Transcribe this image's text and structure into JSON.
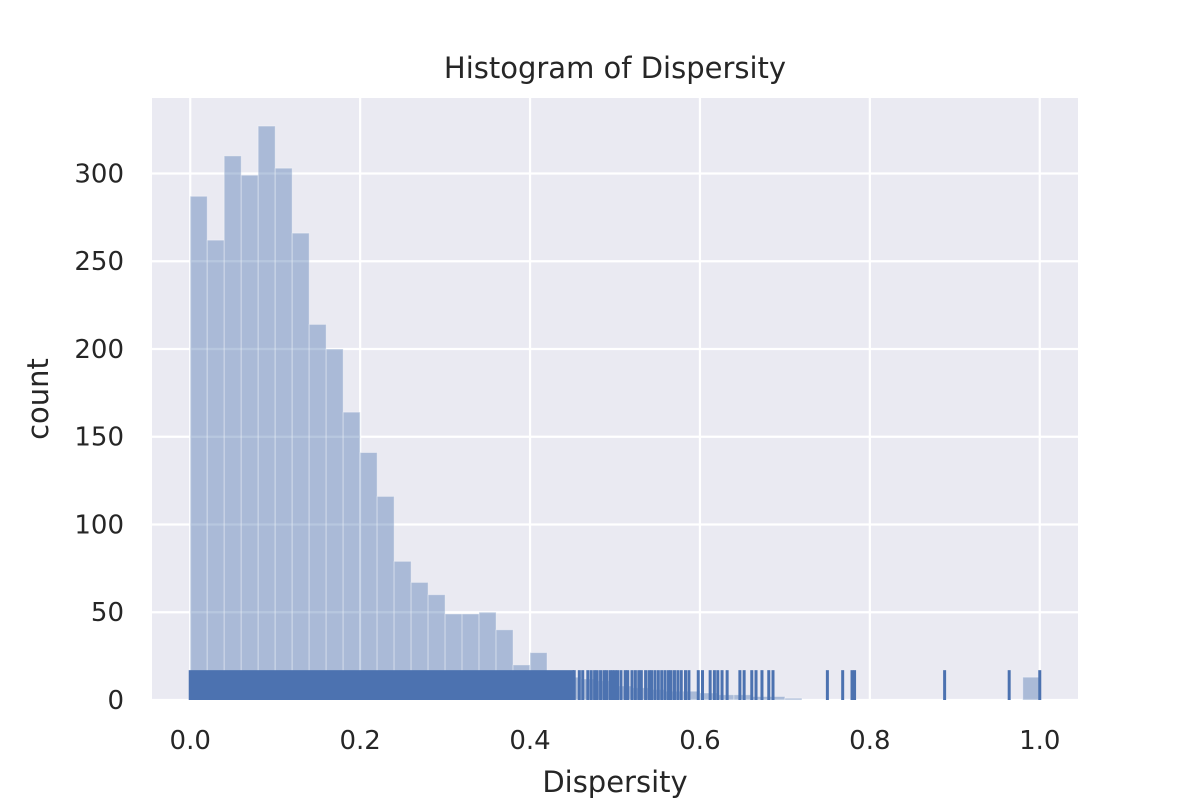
{
  "chart_data": {
    "type": "bar",
    "title": "Histogram of Dispersity",
    "xlabel": "Dispersity",
    "ylabel": "count",
    "xlim": [
      -0.045,
      1.045
    ],
    "ylim": [
      0,
      343
    ],
    "x_ticks": [
      0.0,
      0.2,
      0.4,
      0.6,
      0.8,
      1.0
    ],
    "x_tick_labels": [
      "0.0",
      "0.2",
      "0.4",
      "0.6",
      "0.8",
      "1.0"
    ],
    "y_ticks": [
      0,
      50,
      100,
      150,
      200,
      250,
      300
    ],
    "y_tick_labels": [
      "0",
      "50",
      "100",
      "150",
      "200",
      "250",
      "300"
    ],
    "grid": true,
    "colors": {
      "background": "#eaeaf2",
      "bar": "#4c72b0",
      "grid": "#ffffff",
      "text": "#262626"
    },
    "bin_width": 0.02,
    "bin_start": 0.0,
    "bin_counts": [
      287,
      262,
      310,
      299,
      327,
      303,
      266,
      214,
      200,
      164,
      141,
      116,
      79,
      67,
      60,
      49,
      49,
      50,
      40,
      20,
      27,
      12,
      13,
      12,
      11,
      8,
      7,
      6,
      5,
      5,
      4,
      3,
      3,
      2,
      2,
      1,
      0,
      0,
      0,
      0,
      0,
      0,
      0,
      0,
      0,
      0,
      0,
      0,
      0,
      13
    ],
    "rug": {
      "height_count": 17,
      "dense_range": [
        0.0,
        0.45
      ],
      "values": [
        0.452,
        0.458,
        0.462,
        0.468,
        0.472,
        0.476,
        0.479,
        0.483,
        0.487,
        0.49,
        0.494,
        0.497,
        0.5,
        0.503,
        0.507,
        0.512,
        0.515,
        0.52,
        0.524,
        0.528,
        0.531,
        0.536,
        0.54,
        0.543,
        0.547,
        0.551,
        0.555,
        0.559,
        0.563,
        0.566,
        0.57,
        0.574,
        0.578,
        0.583,
        0.587,
        0.598,
        0.603,
        0.612,
        0.617,
        0.621,
        0.626,
        0.632,
        0.647,
        0.652,
        0.661,
        0.666,
        0.673,
        0.681,
        0.686,
        0.75,
        0.768,
        0.779,
        0.782,
        0.888,
        0.964,
        1.0
      ]
    }
  }
}
